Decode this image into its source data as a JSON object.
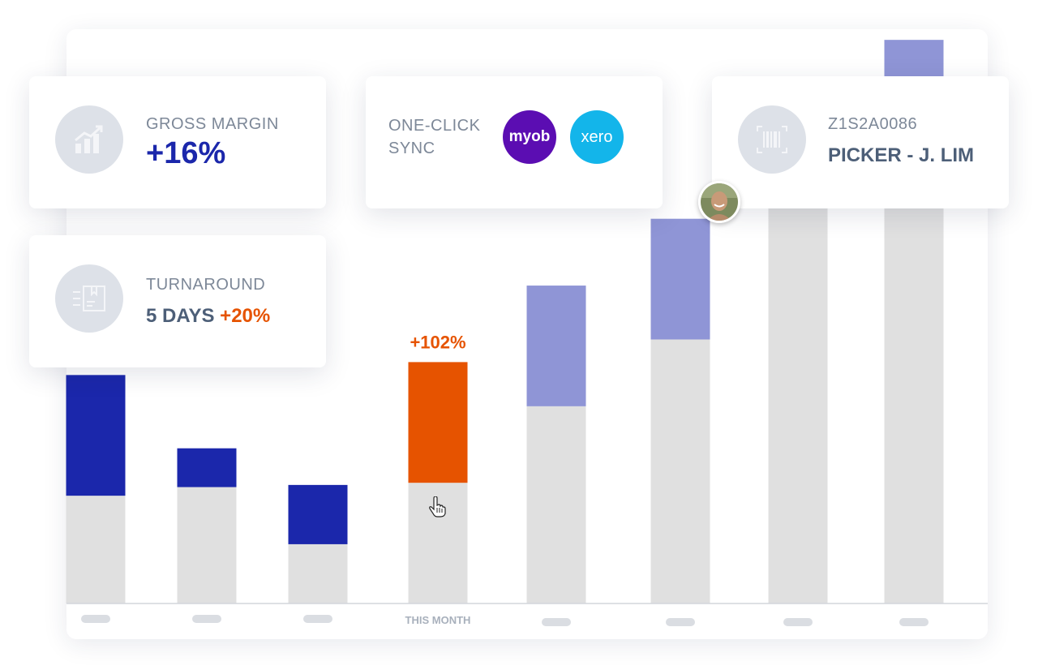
{
  "cards": {
    "gross_margin": {
      "label": "GROSS MARGIN",
      "value": "+16%",
      "icon": "growth-chart-icon"
    },
    "sync": {
      "label_line1": "ONE-CLICK",
      "label_line2": "SYNC",
      "logo_myob": "myob",
      "logo_xero": "xero",
      "myob_color": "#5b0db2",
      "xero_color": "#13b5ea"
    },
    "picker": {
      "code": "Z1S2A0086",
      "name": "PICKER - J. LIM",
      "icon": "barcode-scan-icon"
    },
    "turnaround": {
      "label": "TURNAROUND",
      "value": "5 DAYS",
      "change": "+20%",
      "icon": "fast-delivery-icon"
    }
  },
  "colors": {
    "accent_blue": "#1b27ab",
    "accent_orange": "#e65300",
    "light_purple": "#8f95d6",
    "bar_gray": "#e0e0e0",
    "text_slate": "#4d5f78"
  },
  "chart_data": {
    "type": "bar",
    "stacked": true,
    "categories": [
      "",
      "",
      "",
      "THIS MONTH",
      "",
      "",
      "",
      ""
    ],
    "series": [
      {
        "values": [
          100,
          108,
          55,
          112,
          183,
          245,
          375,
          411
        ]
      },
      {
        "values": [
          112,
          36,
          55,
          112,
          112,
          112,
          112,
          112
        ]
      }
    ],
    "highlight_index": 3,
    "highlight_label": "+102%",
    "segment_colors": [
      "#1b27ab",
      "#1b27ab",
      "#1b27ab",
      "#e65300",
      "#8f95d6",
      "#8f95d6",
      "#8f95d6",
      "#8f95d6"
    ],
    "ylim": [
      0,
      560
    ],
    "grid": false
  }
}
